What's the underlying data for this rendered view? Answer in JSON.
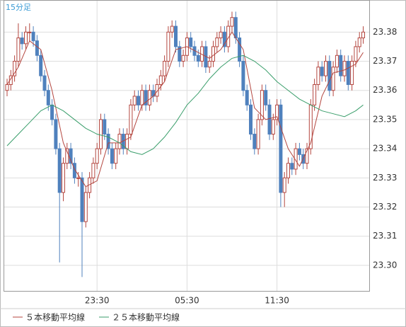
{
  "chart_data": {
    "type": "candlestick",
    "title": "15分足",
    "up_color": "#b4463f",
    "down_color": "#4f81bd",
    "grid": true,
    "ylim": [
      23.291,
      23.391
    ],
    "yticks": [
      {
        "value": 23.3,
        "label": "23.30"
      },
      23.31,
      23.32,
      23.33,
      23.34,
      23.35,
      23.36,
      23.37,
      23.38
    ],
    "categories": [
      null,
      null,
      null,
      null,
      null,
      null,
      null,
      null,
      null,
      null,
      null,
      null,
      null,
      null,
      null,
      null,
      null,
      null,
      null,
      null,
      null,
      null,
      null,
      null,
      "23:30",
      null,
      null,
      null,
      null,
      null,
      null,
      null,
      null,
      null,
      null,
      null,
      null,
      null,
      null,
      null,
      null,
      null,
      null,
      null,
      null,
      null,
      null,
      null,
      "05:30",
      null,
      null,
      null,
      null,
      null,
      null,
      null,
      null,
      null,
      null,
      null,
      null,
      null,
      null,
      null,
      null,
      null,
      null,
      null,
      null,
      null,
      null,
      null,
      "11:30",
      null,
      null,
      null,
      null,
      null,
      null,
      null,
      null,
      null,
      null,
      null,
      null,
      null,
      null,
      null,
      null,
      null,
      null,
      null,
      null,
      null,
      null,
      null
    ],
    "open": [
      23.36,
      23.362,
      23.365,
      23.37,
      23.378,
      23.376,
      23.38,
      23.38,
      23.377,
      23.372,
      23.365,
      23.36,
      23.355,
      23.35,
      23.34,
      23.325,
      23.335,
      23.34,
      23.335,
      23.33,
      23.33,
      23.315,
      23.325,
      23.33,
      23.335,
      23.34,
      23.35,
      23.345,
      23.34,
      23.335,
      23.34,
      23.345,
      23.34,
      23.345,
      23.355,
      23.358,
      23.355,
      23.36,
      23.355,
      23.36,
      23.358,
      23.362,
      23.365,
      23.37,
      23.38,
      23.382,
      23.375,
      23.37,
      23.372,
      23.378,
      23.375,
      23.372,
      23.37,
      23.375,
      23.368,
      23.37,
      23.375,
      23.378,
      23.38,
      23.375,
      23.382,
      23.385,
      23.378,
      23.37,
      23.36,
      23.355,
      23.345,
      23.34,
      23.35,
      23.36,
      23.355,
      23.345,
      23.35,
      23.355,
      23.325,
      23.33,
      23.335,
      23.333,
      23.34,
      23.338,
      23.335,
      23.34,
      23.355,
      23.362,
      23.368,
      23.365,
      23.37,
      23.36,
      23.368,
      23.372,
      23.365,
      23.37,
      23.362,
      23.37,
      23.375,
      23.378
    ],
    "high": [
      23.364,
      23.367,
      23.372,
      23.383,
      23.38,
      23.382,
      23.383,
      23.382,
      23.379,
      23.374,
      23.367,
      23.362,
      23.357,
      23.352,
      23.342,
      23.337,
      23.342,
      23.342,
      23.337,
      23.332,
      23.332,
      23.327,
      23.332,
      23.337,
      23.342,
      23.352,
      23.352,
      23.347,
      23.342,
      23.342,
      23.347,
      23.347,
      23.347,
      23.357,
      23.36,
      23.36,
      23.362,
      23.362,
      23.362,
      23.362,
      23.364,
      23.367,
      23.372,
      23.382,
      23.384,
      23.384,
      23.377,
      23.374,
      23.38,
      23.38,
      23.377,
      23.374,
      23.377,
      23.377,
      23.372,
      23.377,
      23.38,
      23.382,
      23.382,
      23.384,
      23.387,
      23.387,
      23.38,
      23.372,
      23.362,
      23.357,
      23.347,
      23.352,
      23.362,
      23.362,
      23.357,
      23.352,
      23.357,
      23.357,
      23.332,
      23.337,
      23.337,
      23.342,
      23.342,
      23.34,
      23.342,
      23.357,
      23.364,
      23.37,
      23.37,
      23.372,
      23.372,
      23.37,
      23.374,
      23.374,
      23.372,
      23.372,
      23.372,
      23.377,
      23.38,
      23.382
    ],
    "low": [
      23.358,
      23.36,
      23.363,
      23.368,
      23.374,
      23.374,
      23.377,
      23.375,
      23.37,
      23.363,
      23.358,
      23.353,
      23.348,
      23.338,
      23.301,
      23.322,
      23.333,
      23.333,
      23.328,
      23.327,
      23.296,
      23.313,
      23.323,
      23.328,
      23.333,
      23.338,
      23.343,
      23.338,
      23.333,
      23.333,
      23.338,
      23.338,
      23.338,
      23.343,
      23.353,
      23.353,
      23.353,
      23.353,
      23.353,
      23.356,
      23.356,
      23.36,
      23.363,
      23.368,
      23.378,
      23.373,
      23.368,
      23.368,
      23.37,
      23.373,
      23.37,
      23.368,
      23.368,
      23.366,
      23.366,
      23.368,
      23.373,
      23.376,
      23.373,
      23.373,
      23.38,
      23.376,
      23.368,
      23.358,
      23.353,
      23.343,
      23.338,
      23.338,
      23.348,
      23.353,
      23.343,
      23.343,
      23.348,
      23.32,
      23.32,
      23.328,
      23.331,
      23.331,
      23.336,
      23.333,
      23.333,
      23.338,
      23.353,
      23.36,
      23.363,
      23.363,
      23.358,
      23.358,
      23.366,
      23.363,
      23.363,
      23.36,
      23.36,
      23.368,
      23.373,
      23.376
    ],
    "close": [
      23.362,
      23.365,
      23.37,
      23.378,
      23.376,
      23.38,
      23.38,
      23.377,
      23.372,
      23.365,
      23.36,
      23.355,
      23.35,
      23.34,
      23.325,
      23.335,
      23.34,
      23.335,
      23.33,
      23.33,
      23.315,
      23.325,
      23.33,
      23.335,
      23.34,
      23.35,
      23.345,
      23.34,
      23.335,
      23.34,
      23.345,
      23.34,
      23.345,
      23.355,
      23.358,
      23.355,
      23.36,
      23.355,
      23.36,
      23.358,
      23.362,
      23.365,
      23.37,
      23.38,
      23.382,
      23.375,
      23.37,
      23.372,
      23.378,
      23.375,
      23.372,
      23.37,
      23.375,
      23.368,
      23.37,
      23.375,
      23.378,
      23.38,
      23.375,
      23.382,
      23.385,
      23.378,
      23.37,
      23.36,
      23.355,
      23.345,
      23.34,
      23.35,
      23.36,
      23.355,
      23.345,
      23.35,
      23.355,
      23.325,
      23.33,
      23.335,
      23.333,
      23.34,
      23.338,
      23.335,
      23.34,
      23.355,
      23.362,
      23.368,
      23.365,
      23.37,
      23.36,
      23.368,
      23.372,
      23.365,
      23.37,
      23.362,
      23.37,
      23.375,
      23.378,
      23.38
    ],
    "series": [
      {
        "name": "５本移動平均線",
        "color": "#b4463f",
        "x": [
          0,
          3,
          6,
          9,
          12,
          15,
          18,
          21,
          24,
          27,
          30,
          33,
          36,
          39,
          42,
          45,
          48,
          51,
          54,
          57,
          60,
          63,
          66,
          69,
          72,
          75,
          78,
          81,
          84,
          87,
          90,
          93,
          95
        ],
        "values": [
          23.362,
          23.368,
          23.377,
          23.374,
          23.36,
          23.342,
          23.333,
          23.327,
          23.329,
          23.342,
          23.342,
          23.344,
          23.355,
          23.358,
          23.363,
          23.374,
          23.375,
          23.373,
          23.371,
          23.374,
          23.38,
          23.374,
          23.354,
          23.35,
          23.351,
          23.34,
          23.334,
          23.342,
          23.358,
          23.366,
          23.367,
          23.369,
          23.373
        ]
      },
      {
        "name": "２５本移動平均線",
        "color": "#3a9e6b",
        "x": [
          0,
          3,
          6,
          9,
          12,
          15,
          18,
          21,
          24,
          27,
          30,
          33,
          36,
          39,
          42,
          45,
          48,
          51,
          54,
          57,
          60,
          63,
          66,
          69,
          72,
          75,
          78,
          81,
          84,
          87,
          90,
          93,
          95
        ],
        "values": [
          23.341,
          23.345,
          23.349,
          23.353,
          23.355,
          23.353,
          23.35,
          23.347,
          23.345,
          23.344,
          23.342,
          23.339,
          23.338,
          23.34,
          23.344,
          23.349,
          23.355,
          23.359,
          23.364,
          23.368,
          23.371,
          23.372,
          23.37,
          23.367,
          23.363,
          23.36,
          23.357,
          23.355,
          23.353,
          23.352,
          23.351,
          23.353,
          23.355
        ]
      }
    ]
  }
}
